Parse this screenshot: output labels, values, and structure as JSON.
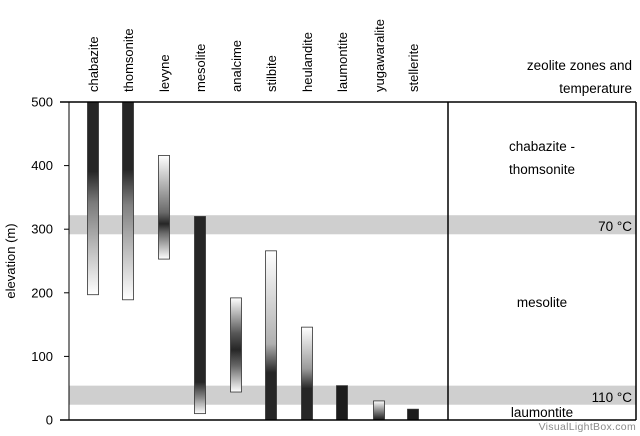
{
  "chart_data": {
    "type": "range-bar",
    "ylabel": "elevation (m)",
    "ylim": [
      0,
      500
    ],
    "yticks": [
      0,
      100,
      200,
      300,
      400,
      500
    ],
    "categories": [
      "chabazite",
      "thomsonite",
      "levyne",
      "mesolite",
      "analcime",
      "stilbite",
      "heulandite",
      "laumontite",
      "yugawaralite",
      "stellerite"
    ],
    "ranges": [
      {
        "mineral": "chabazite",
        "min": 197,
        "max": 500,
        "dark_from": 310
      },
      {
        "mineral": "thomsonite",
        "min": 189,
        "max": 500,
        "dark_from": 300
      },
      {
        "mineral": "levyne",
        "min": 253,
        "max": 416,
        "peak": 305
      },
      {
        "mineral": "mesolite",
        "min": 10,
        "max": 320,
        "dark_from": 45
      },
      {
        "mineral": "analcime",
        "min": 44,
        "max": 192,
        "peak": 115
      },
      {
        "mineral": "stilbite",
        "min": 0,
        "max": 266,
        "dark_below": 75
      },
      {
        "mineral": "heulandite",
        "min": 0,
        "max": 146,
        "dark_below": 50
      },
      {
        "mineral": "laumontite",
        "min": 0,
        "max": 54,
        "dark_below": 54
      },
      {
        "mineral": "yugawaralite",
        "min": 0,
        "max": 30,
        "dark_below": 12
      },
      {
        "mineral": "stellerite",
        "min": 0,
        "max": 17,
        "dark_below": 17
      }
    ],
    "bands": [
      {
        "name": "70 °C boundary",
        "min": 292,
        "max": 322
      },
      {
        "name": "110 °C boundary",
        "min": 24,
        "max": 54
      }
    ],
    "zone_panel": {
      "title_lines": [
        "zeolite zones and",
        "temperature"
      ],
      "zones": [
        {
          "lines": [
            "chabazite -",
            "thomsonite"
          ]
        },
        {
          "lines": [
            "mesolite"
          ]
        },
        {
          "lines": [
            "laumontite"
          ]
        }
      ],
      "temperatures": [
        "70 °C",
        "110 °C"
      ]
    }
  },
  "watermark": "VisualLightBox.com"
}
